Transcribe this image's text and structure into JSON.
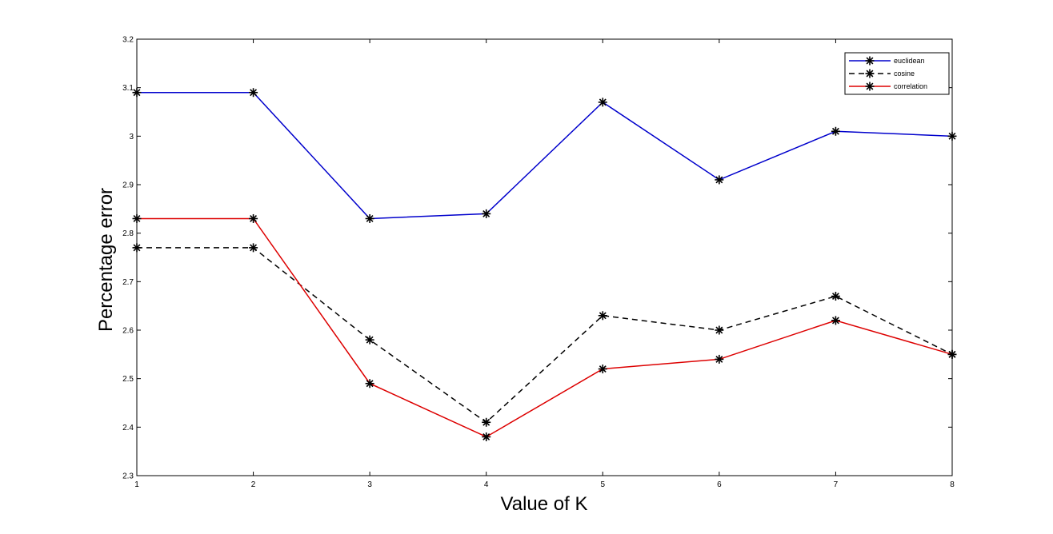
{
  "chart_data": {
    "type": "line",
    "title": "",
    "xlabel": "Value of K",
    "ylabel": "Percentage error",
    "x": [
      1,
      2,
      3,
      4,
      5,
      6,
      7,
      8
    ],
    "xlim": [
      1,
      8
    ],
    "ylim": [
      2.3,
      3.2
    ],
    "x_ticks": [
      "1",
      "2",
      "3",
      "4",
      "5",
      "6",
      "7",
      "8"
    ],
    "y_ticks": [
      "2.3",
      "2.4",
      "2.5",
      "2.6",
      "2.7",
      "2.8",
      "2.9",
      "3",
      "3.1",
      "3.2"
    ],
    "grid": false,
    "legend_position": "top-right",
    "marker": "asterisk",
    "series": [
      {
        "name": "euclidean",
        "color": "#0000cc",
        "line_style": "solid",
        "values": [
          3.09,
          3.09,
          2.83,
          2.84,
          3.07,
          2.91,
          3.01,
          3.0
        ]
      },
      {
        "name": "cosine",
        "color": "#000000",
        "line_style": "dashed",
        "values": [
          2.77,
          2.77,
          2.58,
          2.41,
          2.63,
          2.6,
          2.67,
          2.55
        ]
      },
      {
        "name": "correlation",
        "color": "#dd0000",
        "line_style": "solid",
        "values": [
          2.83,
          2.83,
          2.49,
          2.38,
          2.52,
          2.54,
          2.62,
          2.55
        ]
      }
    ]
  }
}
